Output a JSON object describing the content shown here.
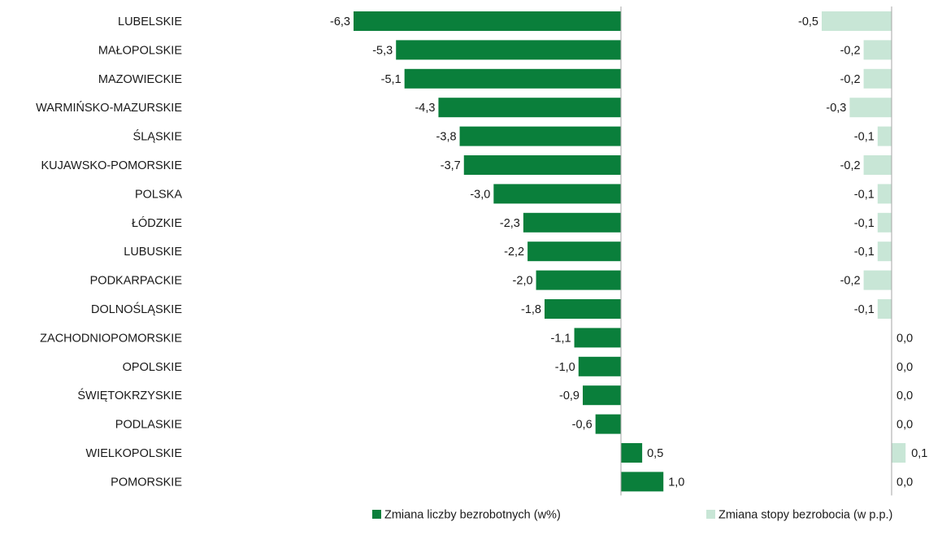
{
  "chart_data": {
    "type": "bar",
    "orientation": "horizontal",
    "categories": [
      "LUBELSKIE",
      "MAŁOPOLSKIE",
      "MAZOWIECKIE",
      "WARMIŃSKO-MAZURSKIE",
      "ŚLĄSKIE",
      "KUJAWSKO-POMORSKIE",
      "POLSKA",
      "ŁÓDZKIE",
      "LUBUSKIE",
      "PODKARPACKIE",
      "DOLNOŚLĄSKIE",
      "ZACHODNIOPOMORSKIE",
      "OPOLSKIE",
      "ŚWIĘTOKRZYSKIE",
      "PODLASKIE",
      "WIELKOPOLSKIE",
      "POMORSKIE"
    ],
    "series": [
      {
        "name": "Zmiana liczby bezrobotnych (w%)",
        "color": "#0a7f3b",
        "values": [
          -6.3,
          -5.3,
          -5.1,
          -4.3,
          -3.8,
          -3.7,
          -3.0,
          -2.3,
          -2.2,
          -2.0,
          -1.8,
          -1.1,
          -1.0,
          -0.9,
          -0.6,
          0.5,
          1.0
        ],
        "labels": [
          "-6,3",
          "-5,3",
          "-5,1",
          "-4,3",
          "-3,8",
          "-3,7",
          "-3,0",
          "-2,3",
          "-2,2",
          "-2,0",
          "-1,8",
          "-1,1",
          "-1,0",
          "-0,9",
          "-0,6",
          "0,5",
          "1,0"
        ]
      },
      {
        "name": "Zmiana stopy bezrobocia (w p.p.)",
        "color": "#c8e6d6",
        "values": [
          -0.5,
          -0.2,
          -0.2,
          -0.3,
          -0.1,
          -0.2,
          -0.1,
          -0.1,
          -0.1,
          -0.2,
          -0.1,
          0.0,
          0.0,
          0.0,
          0.0,
          0.1,
          0.0
        ],
        "labels": [
          "-0,5",
          "-0,2",
          "-0,2",
          "-0,3",
          "-0,1",
          "-0,2",
          "-0,1",
          "-0,1",
          "-0,1",
          "-0,2",
          "-0,1",
          "0,0",
          "0,0",
          "0,0",
          "0,0",
          "0,1",
          "0,0"
        ]
      }
    ],
    "legend_position": "bottom",
    "grid": false
  }
}
